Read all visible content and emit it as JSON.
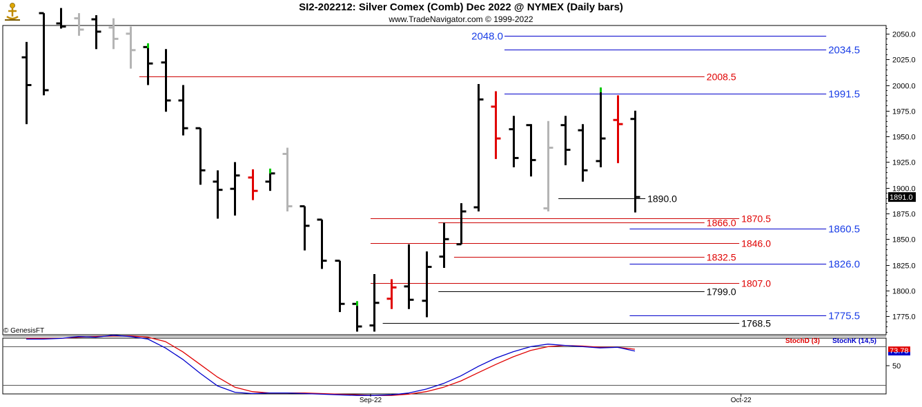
{
  "header": {
    "title": "SI2-202212:  Silver Comex (Comb) Dec 2022 @ NYMEX  (Daily bars)",
    "subtitle": "www.TradeNavigator.com © 1999-2022",
    "credit": "© GenesisFT"
  },
  "colors": {
    "up": "#000000",
    "down_gray": "#b4b4b4",
    "red": "#e00000",
    "green": "#00c800",
    "blue_line": "#0000cc",
    "red_line": "#cc0000",
    "blue_text": "#1a3ee6",
    "red_text": "#e00000",
    "stoch_d": "#e00000",
    "stoch_k": "#0000cc"
  },
  "chart_data": {
    "type": "ohlc",
    "price_axis": {
      "ylim": [
        1757,
        2058
      ],
      "ticks": [
        "2050.0",
        "2025.0",
        "2000.0",
        "1975.0",
        "1950.0",
        "1925.0",
        "1900.0",
        "1875.0",
        "1850.0",
        "1825.0",
        "1800.0",
        "1775.0"
      ],
      "last_price": "1891.0"
    },
    "x_labels": [
      {
        "label": "Sep-22",
        "bar": 19.8
      },
      {
        "label": "Oct-22",
        "bar": 41.1
      }
    ],
    "bars": [
      {
        "h": 2042,
        "l": 1962,
        "o": 2027,
        "c": 2000,
        "color": "black"
      },
      {
        "h": 2070,
        "l": 1990,
        "o": 2070,
        "c": 1995,
        "color": "black"
      },
      {
        "h": 2075,
        "l": 2055,
        "o": 2060,
        "c": 2057,
        "color": "black"
      },
      {
        "h": 2070,
        "l": 2048,
        "o": 2065,
        "c": 2054,
        "color": "gray"
      },
      {
        "h": 2068,
        "l": 2035,
        "o": 2064,
        "c": 2052,
        "color": "black"
      },
      {
        "h": 2065,
        "l": 2035,
        "o": 2056,
        "c": 2045,
        "color": "gray"
      },
      {
        "h": 2057,
        "l": 2016,
        "o": 2050,
        "c": 2034,
        "color": "gray"
      },
      {
        "h": 2040,
        "l": 2000,
        "o": 2037,
        "c": 2021,
        "color": "black",
        "mark": "green"
      },
      {
        "h": 2035,
        "l": 1974,
        "o": 2022,
        "c": 1985,
        "color": "black"
      },
      {
        "h": 2000,
        "l": 1951,
        "o": 1985,
        "c": 1958,
        "color": "black"
      },
      {
        "h": 1958,
        "l": 1903,
        "o": 1958,
        "c": 1917,
        "color": "black"
      },
      {
        "h": 1917,
        "l": 1870,
        "o": 1906,
        "c": 1898,
        "color": "black"
      },
      {
        "h": 1925,
        "l": 1873,
        "o": 1899,
        "c": 1912,
        "color": "black"
      },
      {
        "h": 1918,
        "l": 1888,
        "o": 1910,
        "c": 1897,
        "color": "red"
      },
      {
        "h": 1918,
        "l": 1897,
        "o": 1906,
        "c": 1914,
        "color": "black",
        "mark": "green"
      },
      {
        "h": 1939,
        "l": 1877,
        "o": 1933,
        "c": 1882,
        "color": "gray"
      },
      {
        "h": 1882,
        "l": 1839,
        "o": 1882,
        "c": 1863,
        "color": "black"
      },
      {
        "h": 1869,
        "l": 1821,
        "o": 1869,
        "c": 1829,
        "color": "black"
      },
      {
        "h": 1829,
        "l": 1779,
        "o": 1829,
        "c": 1787,
        "color": "black"
      },
      {
        "h": 1789,
        "l": 1760,
        "o": 1787,
        "c": 1765,
        "color": "black",
        "mark": "green"
      },
      {
        "h": 1816,
        "l": 1760,
        "o": 1766,
        "c": 1788,
        "color": "black"
      },
      {
        "h": 1811,
        "l": 1782,
        "o": 1792,
        "c": 1803,
        "color": "red"
      },
      {
        "h": 1845,
        "l": 1782,
        "o": 1804,
        "c": 1791,
        "color": "black"
      },
      {
        "h": 1838,
        "l": 1774,
        "o": 1790,
        "c": 1823,
        "color": "black"
      },
      {
        "h": 1866,
        "l": 1822,
        "o": 1833,
        "c": 1850,
        "color": "black"
      },
      {
        "h": 1885,
        "l": 1845,
        "o": 1845,
        "c": 1877,
        "color": "black"
      },
      {
        "h": 2001,
        "l": 1877,
        "o": 1881,
        "c": 1986,
        "color": "black"
      },
      {
        "h": 1994,
        "l": 1928,
        "o": 1979,
        "c": 1948,
        "color": "red"
      },
      {
        "h": 1970,
        "l": 1920,
        "o": 1957,
        "c": 1929,
        "color": "black"
      },
      {
        "h": 1962,
        "l": 1911,
        "o": 1961,
        "c": 1927,
        "color": "black"
      },
      {
        "h": 1965,
        "l": 1877,
        "o": 1880,
        "c": 1939,
        "color": "gray"
      },
      {
        "h": 1970,
        "l": 1922,
        "o": 1961,
        "c": 1937,
        "color": "black"
      },
      {
        "h": 1962,
        "l": 1906,
        "o": 1956,
        "c": 1917,
        "color": "black"
      },
      {
        "h": 1997,
        "l": 1920,
        "o": 1926,
        "c": 1948,
        "color": "black",
        "mark": "green"
      },
      {
        "h": 1990,
        "l": 1924,
        "o": 1966,
        "c": 1962,
        "color": "red"
      },
      {
        "h": 1975,
        "l": 1876,
        "o": 1967,
        "c": 1891,
        "color": "black"
      }
    ],
    "levels": [
      {
        "label": "2048.0",
        "value": 2048.0,
        "color": "blue",
        "x_start": 27.5,
        "x_end": 46.0,
        "label_side": "left"
      },
      {
        "label": "2034.5",
        "value": 2034.5,
        "color": "blue",
        "x_start": 27.5,
        "x_end": 46.0,
        "label_side": "right"
      },
      {
        "label": "2008.5",
        "value": 2008.5,
        "color": "red",
        "x_start": 6.5,
        "x_end": 39.0,
        "label_side": "right"
      },
      {
        "label": "1991.5",
        "value": 1991.5,
        "color": "blue",
        "x_start": 27.5,
        "x_end": 46.0,
        "label_side": "right"
      },
      {
        "label": "1890.0",
        "value": 1890.0,
        "color": "black",
        "x_start": 30.6,
        "x_end": 35.6,
        "label_side": "right"
      },
      {
        "label": "1870.5",
        "value": 1870.5,
        "color": "red",
        "x_start": 19.8,
        "x_end": 41.0,
        "label_side": "right"
      },
      {
        "label": "1866.0",
        "value": 1866.0,
        "color": "red",
        "x_start": 23.7,
        "x_end": 39.0,
        "label_side": "right"
      },
      {
        "label": "1860.5",
        "value": 1860.5,
        "color": "blue",
        "x_start": 34.7,
        "x_end": 46.0,
        "label_side": "right"
      },
      {
        "label": "1846.0",
        "value": 1846.0,
        "color": "red",
        "x_start": 19.8,
        "x_end": 41.0,
        "label_side": "right"
      },
      {
        "label": "1832.5",
        "value": 1832.5,
        "color": "red",
        "x_start": 24.6,
        "x_end": 39.0,
        "label_side": "right"
      },
      {
        "label": "1826.0",
        "value": 1826.0,
        "color": "blue",
        "x_start": 34.7,
        "x_end": 46.0,
        "label_side": "right"
      },
      {
        "label": "1807.0",
        "value": 1807.0,
        "color": "red",
        "x_start": 19.8,
        "x_end": 41.0,
        "label_side": "right"
      },
      {
        "label": "1799.0",
        "value": 1799.0,
        "color": "black",
        "x_start": 23.7,
        "x_end": 39.0,
        "label_side": "right"
      },
      {
        "label": "1775.5",
        "value": 1775.5,
        "color": "blue",
        "x_start": 34.7,
        "x_end": 46.0,
        "label_side": "right"
      },
      {
        "label": "1768.5",
        "value": 1768.5,
        "color": "black",
        "x_start": 20.5,
        "x_end": 41.0,
        "label_side": "right"
      }
    ],
    "stochastic": {
      "legend": [
        {
          "label": "StochD (3)",
          "color": "red"
        },
        {
          "label": "StochK (14,5)",
          "color": "blue"
        }
      ],
      "ylim": [
        0,
        100
      ],
      "ticks": [
        "50"
      ],
      "last_value": "73.78",
      "ref_levels": [
        80,
        20
      ],
      "k": [
        92,
        92,
        93,
        96,
        95,
        98,
        96,
        92,
        78,
        60,
        38,
        18,
        8,
        6,
        7,
        7,
        6,
        5,
        4,
        3,
        3,
        4,
        7,
        13,
        22,
        34,
        49,
        62,
        72,
        80,
        84,
        82,
        80,
        78,
        79,
        73
      ],
      "d": [
        93,
        93,
        93,
        95,
        96,
        97,
        97,
        95,
        88,
        72,
        52,
        32,
        16,
        9,
        7,
        7,
        7,
        6,
        5,
        4,
        3,
        3,
        5,
        9,
        16,
        26,
        39,
        52,
        64,
        74,
        80,
        82,
        81,
        79,
        79,
        76
      ]
    }
  }
}
